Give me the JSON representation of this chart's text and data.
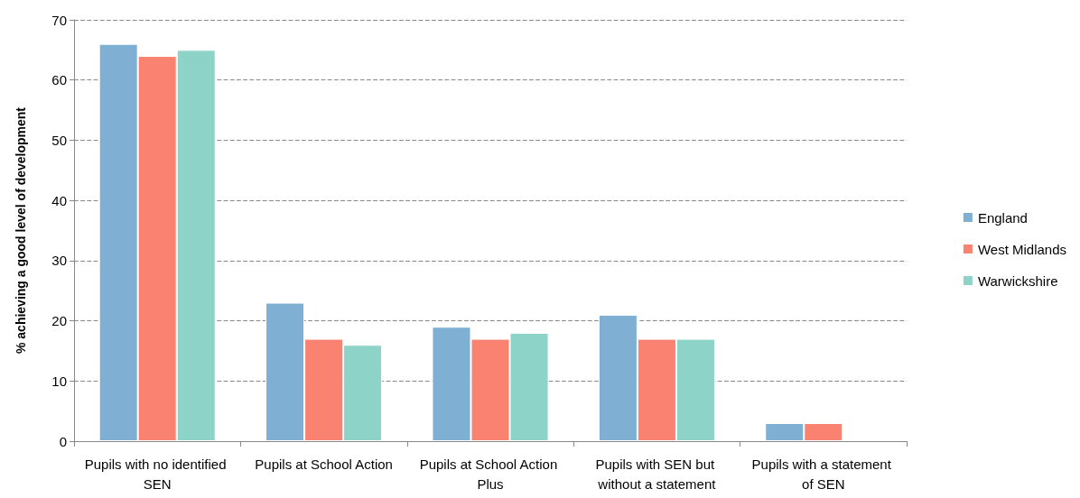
{
  "chart_data": {
    "type": "bar",
    "ylabel": "% achieving a good level of development",
    "categories": [
      "Pupils with no identified SEN",
      "Pupils at School Action",
      "Pupils at School Action Plus",
      "Pupils with SEN but without a statement",
      "Pupils with a statement of SEN"
    ],
    "series": [
      {
        "name": "England",
        "color": "#7fafd3",
        "values": [
          66,
          23,
          19,
          21,
          3
        ]
      },
      {
        "name": "West Midlands",
        "color": "#f98370",
        "values": [
          64,
          17,
          17,
          17,
          3
        ]
      },
      {
        "name": "Warwickshire",
        "color": "#8dd3c7",
        "values": [
          65,
          16,
          18,
          17,
          null
        ]
      }
    ],
    "ylim": [
      0,
      70
    ],
    "yticks": [
      0,
      10,
      20,
      30,
      40,
      50,
      60,
      70
    ],
    "grid": "y",
    "legend": "right"
  }
}
